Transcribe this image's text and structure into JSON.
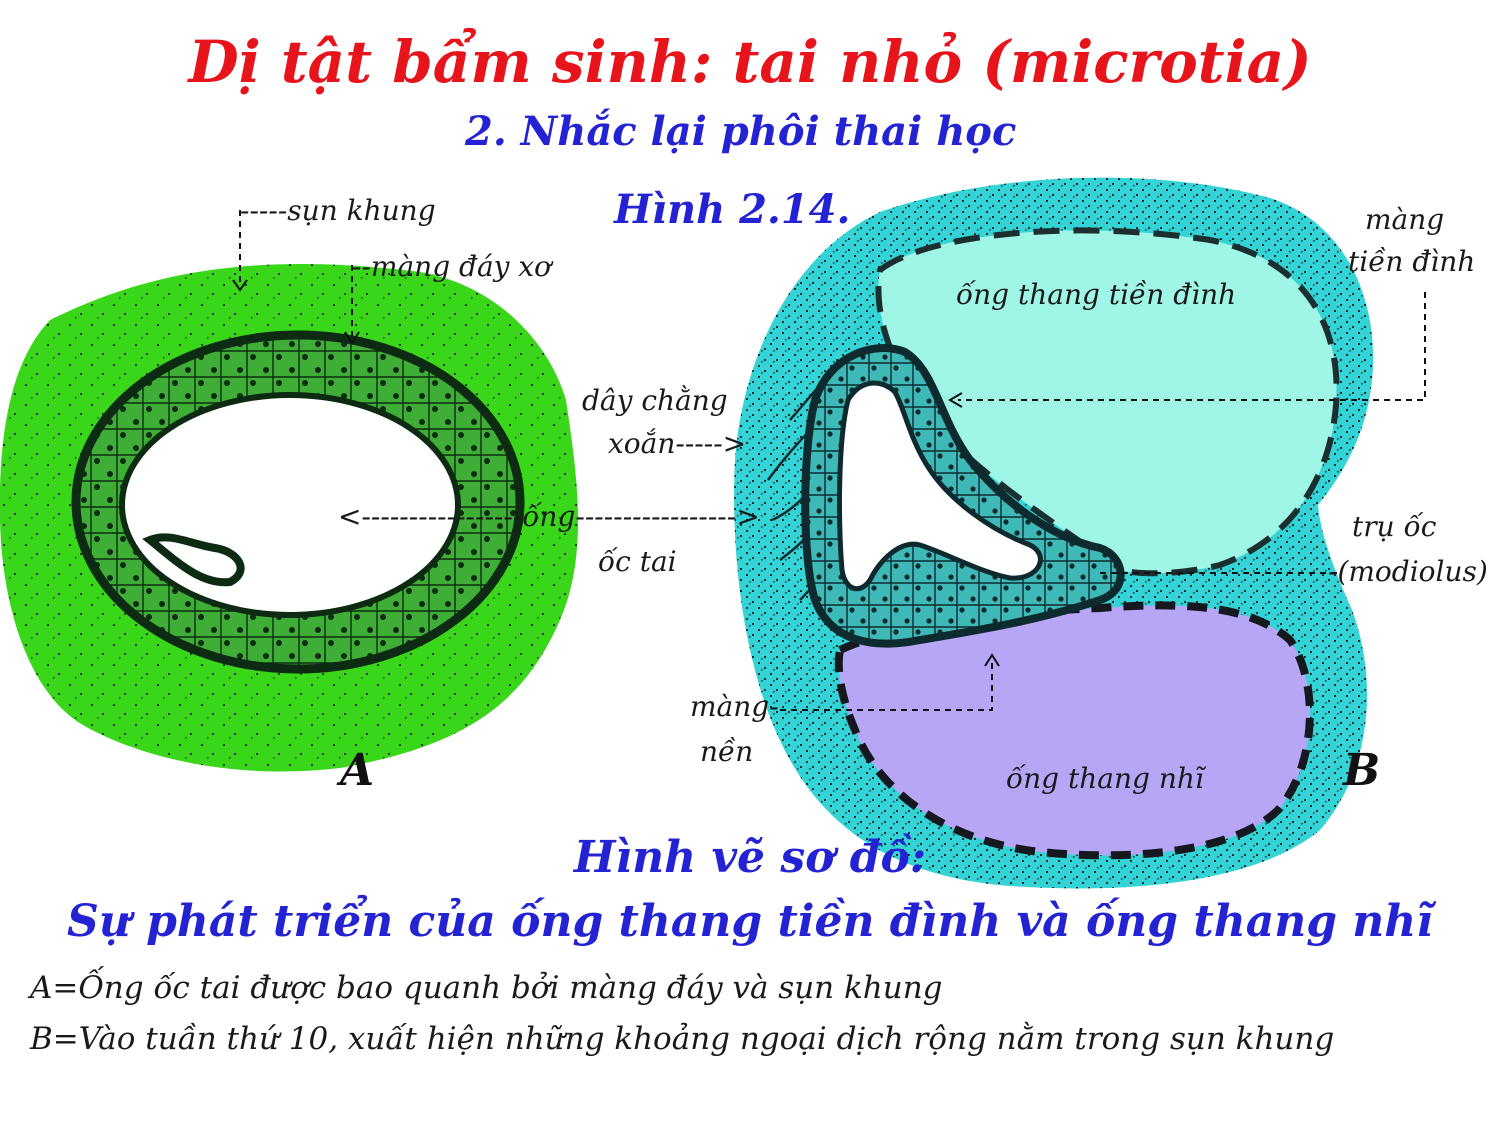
{
  "header": {
    "title": "Dị tật bẩm sinh: tai nhỏ (microtia)",
    "subtitle": "2. Nhắc lại phôi thai học",
    "figure_number": "Hình 2.14."
  },
  "figure_a": {
    "panel_label": "A",
    "labels": {
      "cartilage": "-----sụn khung",
      "basement_membrane": "--màng đáy xơ"
    }
  },
  "figure_b": {
    "panel_label": "B",
    "labels": {
      "vestibular_membrane_l1": "màng",
      "vestibular_membrane_l2": "tiền đình",
      "scala_vestibuli": "ống thang tiền đình",
      "spiral_ligament_l1": "dây chằng",
      "spiral_ligament_l2": "xoắn----->",
      "modiolus_l1": "trụ ốc",
      "modiolus_l2": "-(modiolus)",
      "basilar_membrane_l1": "màng-",
      "basilar_membrane_l2": "nền",
      "scala_tympani": "ống thang nhĩ"
    }
  },
  "shared_labels": {
    "cochlear_duct_l1": "<-----------------ống-----------------> ",
    "cochlear_duct_l2": "ốc tai"
  },
  "caption": {
    "title": "Hình vẽ sơ đồ:",
    "subtitle": "Sự phát triển của ống thang tiền đình và ống thang nhĩ",
    "line_a": "A=Ống ốc tai được bao quanh bởi màng đáy và sụn khung",
    "line_b": "B=Vào tuần thứ 10, xuất hiện những khoảng ngoại dịch rộng nằm trong sụn khung"
  },
  "colors": {
    "title": "#e8141c",
    "heading_blue": "#2323d4",
    "panel_a_fill": "#39d61a",
    "panel_b_fill": "#33d3d6",
    "scala_vestibuli_fill": "#9ff5e6",
    "scala_tympani_fill": "#b6a6f5",
    "outline": "#0d2a12"
  }
}
